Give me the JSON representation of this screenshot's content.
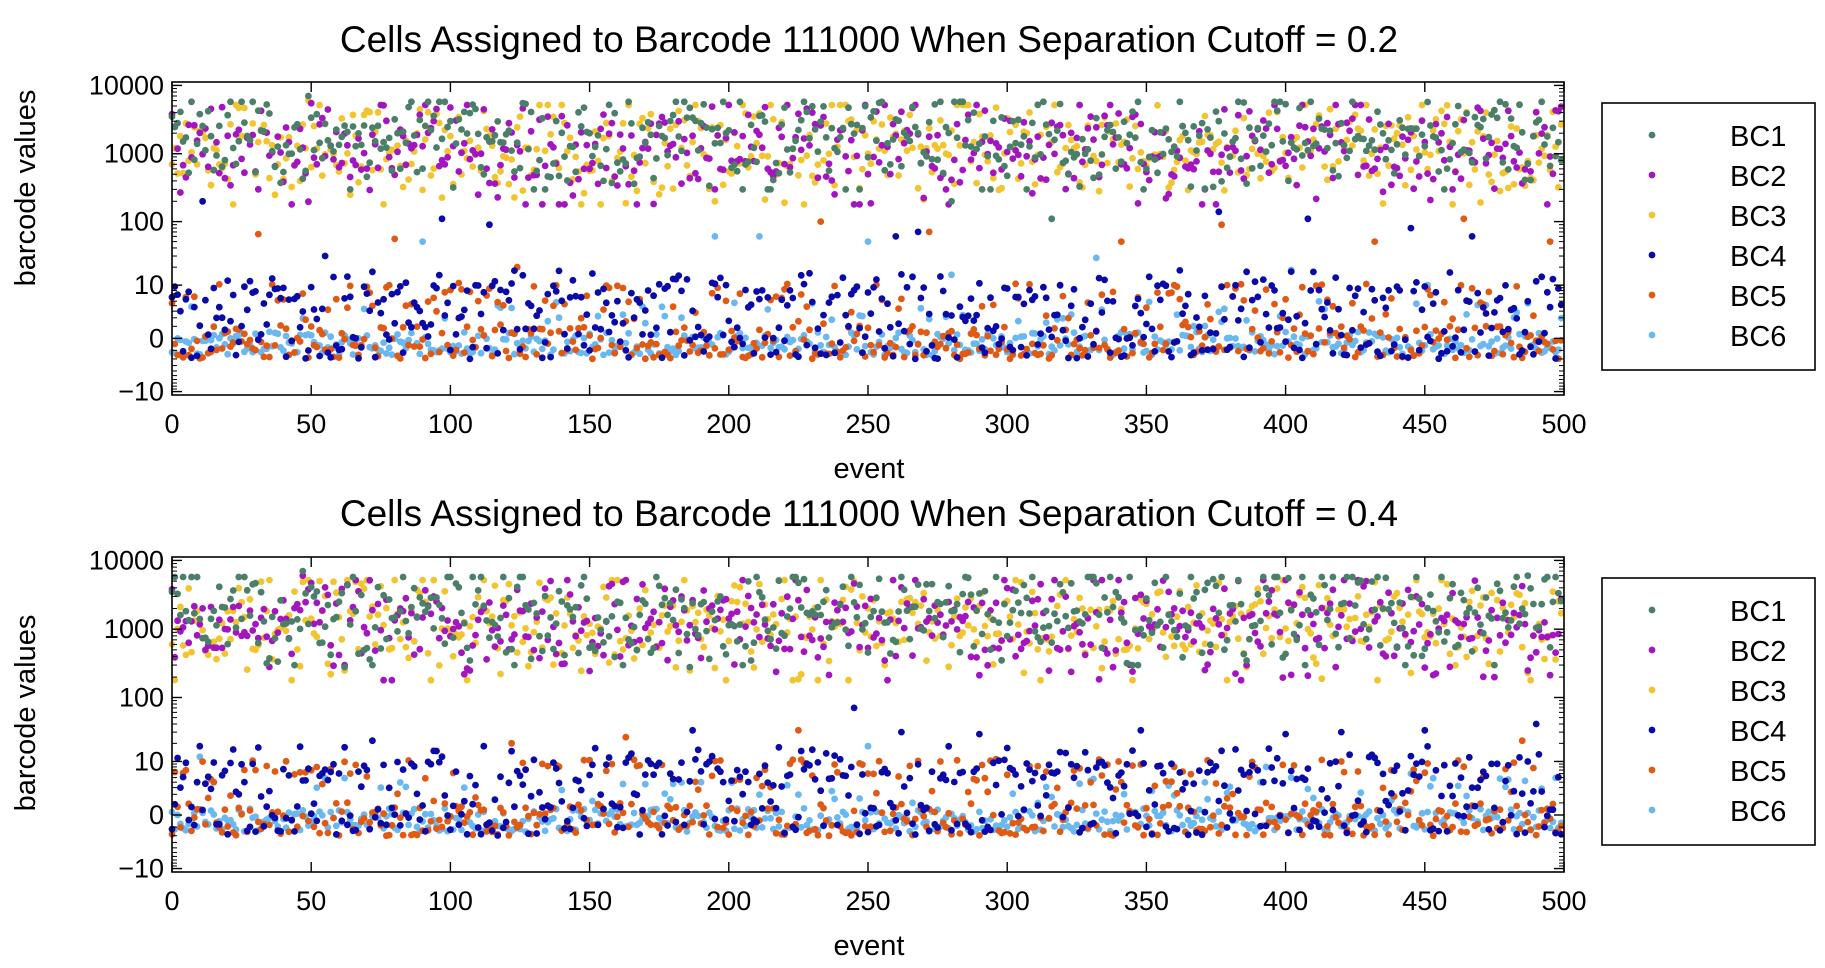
{
  "colors": {
    "BC1": "#4b7f6a",
    "BC2": "#a315be",
    "BC3": "#f2c530",
    "BC4": "#0a0aa8",
    "BC5": "#e05a14",
    "BC6": "#69b8f0"
  },
  "chart_data": [
    {
      "type": "scatter",
      "title": "Cells Assigned to Barcode 111000 When Separation Cutoff = 0.2",
      "xlabel": "event",
      "ylabel": "barcode values",
      "xlim": [
        0,
        500
      ],
      "x_ticks": [
        "0",
        "50",
        "100",
        "150",
        "200",
        "250",
        "300",
        "350",
        "400",
        "450",
        "500"
      ],
      "y_ticks": [
        "−10",
        "0",
        "10",
        "100",
        "1000",
        "10000"
      ],
      "y_scale": "asinh-log",
      "grid": false,
      "legend_position": "right",
      "n_events": 500,
      "series": [
        {
          "name": "BC1",
          "typical_range": [
            500,
            5000
          ],
          "sample_points": [
            [
              0,
              3500
            ],
            [
              10,
              3800
            ],
            [
              49,
              7000
            ],
            [
              64,
              300
            ],
            [
              100,
              3000
            ],
            [
              155,
              400
            ],
            [
              280,
              200
            ],
            [
              288,
              4000
            ],
            [
              316,
              110
            ],
            [
              350,
              600
            ],
            [
              376,
              3000
            ],
            [
              462,
              5000
            ],
            [
              500,
              2500
            ]
          ]
        },
        {
          "name": "BC2",
          "typical_range": [
            300,
            4500
          ],
          "sample_points": [
            [
              0,
              3800
            ],
            [
              30,
              550
            ],
            [
              50,
              5500
            ],
            [
              110,
              250
            ],
            [
              195,
              300
            ],
            [
              230,
              4000
            ],
            [
              278,
              300
            ],
            [
              330,
              3500
            ],
            [
              415,
              2800
            ],
            [
              460,
              300
            ],
            [
              500,
              2000
            ]
          ]
        },
        {
          "name": "BC3",
          "typical_range": [
            300,
            4500
          ],
          "sample_points": [
            [
              0,
              700
            ],
            [
              30,
              500
            ],
            [
              49,
              6000
            ],
            [
              64,
              250
            ],
            [
              125,
              3500
            ],
            [
              195,
              200
            ],
            [
              250,
              1000
            ],
            [
              290,
              3800
            ],
            [
              370,
              1500
            ],
            [
              440,
              2000
            ],
            [
              500,
              1800
            ]
          ]
        },
        {
          "name": "BC4",
          "typical_range": [
            -2,
            20
          ],
          "sample_points": [
            [
              3,
              3
            ],
            [
              11,
              200
            ],
            [
              20,
              12
            ],
            [
              36,
              13
            ],
            [
              55,
              30
            ],
            [
              97,
              110
            ],
            [
              114,
              90
            ],
            [
              160,
              5
            ],
            [
              260,
              60
            ],
            [
              268,
              70
            ],
            [
              376,
              140
            ],
            [
              408,
              110
            ],
            [
              445,
              80
            ],
            [
              467,
              60
            ],
            [
              500,
              14
            ]
          ]
        },
        {
          "name": "BC5",
          "typical_range": [
            -2,
            12
          ],
          "sample_points": [
            [
              5,
              6
            ],
            [
              31,
              65
            ],
            [
              80,
              55
            ],
            [
              124,
              20
            ],
            [
              233,
              100
            ],
            [
              272,
              70
            ],
            [
              341,
              50
            ],
            [
              377,
              90
            ],
            [
              432,
              50
            ],
            [
              464,
              110
            ],
            [
              495,
              50
            ]
          ]
        },
        {
          "name": "BC6",
          "typical_range": [
            -2,
            5
          ],
          "sample_points": [
            [
              2,
              0
            ],
            [
              90,
              50
            ],
            [
              195,
              60
            ],
            [
              211,
              60
            ],
            [
              250,
              50
            ],
            [
              280,
              15
            ],
            [
              332,
              28
            ],
            [
              402,
              18
            ],
            [
              451,
              10
            ],
            [
              500,
              0
            ]
          ]
        }
      ]
    },
    {
      "type": "scatter",
      "title": "Cells Assigned to Barcode 111000 When Separation Cutoff = 0.4",
      "xlabel": "event",
      "ylabel": "barcode values",
      "xlim": [
        0,
        500
      ],
      "x_ticks": [
        "0",
        "50",
        "100",
        "150",
        "200",
        "250",
        "300",
        "350",
        "400",
        "450",
        "500"
      ],
      "y_ticks": [
        "−10",
        "0",
        "10",
        "100",
        "1000",
        "10000"
      ],
      "y_scale": "asinh-log",
      "grid": false,
      "legend_position": "right",
      "n_events": 500,
      "series": [
        {
          "name": "BC1",
          "typical_range": [
            500,
            5000
          ],
          "sample_points": [
            [
              0,
              3500
            ],
            [
              47,
              7000
            ],
            [
              62,
              280
            ],
            [
              107,
              350
            ],
            [
              146,
              450
            ],
            [
              186,
              280
            ],
            [
              271,
              4500
            ],
            [
              386,
              350
            ],
            [
              475,
              300
            ],
            [
              487,
              6000
            ],
            [
              500,
              2500
            ]
          ]
        },
        {
          "name": "BC2",
          "typical_range": [
            300,
            4500
          ],
          "sample_points": [
            [
              0,
              3800
            ],
            [
              47,
              6000
            ],
            [
              62,
              300
            ],
            [
              107,
              250
            ],
            [
              256,
              350
            ],
            [
              292,
              500
            ],
            [
              386,
              300
            ],
            [
              475,
              200
            ],
            [
              487,
              250
            ],
            [
              500,
              1500
            ]
          ]
        },
        {
          "name": "BC3",
          "typical_range": [
            300,
            4500
          ],
          "sample_points": [
            [
              0,
              600
            ],
            [
              30,
              500
            ],
            [
              62,
              250
            ],
            [
              186,
              250
            ],
            [
              256,
              300
            ],
            [
              386,
              280
            ],
            [
              475,
              200
            ],
            [
              487,
              230
            ],
            [
              500,
              1500
            ]
          ]
        },
        {
          "name": "BC4",
          "typical_range": [
            -2,
            20
          ],
          "sample_points": [
            [
              3,
              3
            ],
            [
              10,
              18
            ],
            [
              72,
              22
            ],
            [
              95,
              15
            ],
            [
              187,
              32
            ],
            [
              245,
              70
            ],
            [
              262,
              30
            ],
            [
              290,
              28
            ],
            [
              348,
              32
            ],
            [
              400,
              28
            ],
            [
              420,
              30
            ],
            [
              450,
              32
            ],
            [
              490,
              40
            ],
            [
              500,
              25
            ]
          ]
        },
        {
          "name": "BC5",
          "typical_range": [
            -2,
            12
          ],
          "sample_points": [
            [
              5,
              7
            ],
            [
              30,
              7
            ],
            [
              122,
              20
            ],
            [
              163,
              25
            ],
            [
              225,
              32
            ],
            [
              250,
              6
            ],
            [
              420,
              10
            ],
            [
              485,
              22
            ],
            [
              500,
              10
            ]
          ]
        },
        {
          "name": "BC6",
          "typical_range": [
            -2,
            5
          ],
          "sample_points": [
            [
              2,
              0
            ],
            [
              10,
              12
            ],
            [
              52,
              3
            ],
            [
              75,
              3
            ],
            [
              190,
              4
            ],
            [
              250,
              18
            ],
            [
              393,
              8
            ],
            [
              445,
              6
            ],
            [
              500,
              0
            ]
          ]
        }
      ]
    }
  ]
}
